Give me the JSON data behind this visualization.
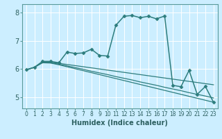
{
  "title": "",
  "xlabel": "Humidex (Indice chaleur)",
  "ylabel": "",
  "bg_color": "#cceeff",
  "line_color": "#2d7d7d",
  "grid_color": "#ffffff",
  "xlim": [
    -0.5,
    23.5
  ],
  "ylim": [
    4.6,
    8.3
  ],
  "xticks": [
    0,
    1,
    2,
    3,
    4,
    5,
    6,
    7,
    8,
    9,
    10,
    11,
    12,
    13,
    14,
    15,
    16,
    17,
    18,
    19,
    20,
    21,
    22,
    23
  ],
  "yticks": [
    5,
    6,
    7,
    8
  ],
  "lines": [
    {
      "x": [
        0,
        1,
        2,
        3,
        4,
        5,
        6,
        7,
        8,
        9,
        10,
        11,
        12,
        13,
        14,
        15,
        16,
        17,
        18,
        19,
        20,
        21,
        22,
        23
      ],
      "y": [
        5.97,
        6.06,
        6.27,
        6.27,
        6.22,
        6.6,
        6.55,
        6.57,
        6.7,
        6.48,
        6.46,
        7.55,
        7.87,
        7.9,
        7.82,
        7.87,
        7.78,
        7.88,
        5.42,
        5.37,
        5.95,
        5.1,
        5.38,
        4.82
      ],
      "marker": "D",
      "lw": 1.1
    },
    {
      "x": [
        0,
        1,
        2,
        3,
        4,
        5,
        6,
        7,
        8,
        9,
        10,
        11,
        12,
        13,
        14,
        15,
        16,
        17,
        18,
        19,
        20,
        21,
        22,
        23
      ],
      "y": [
        5.97,
        6.06,
        6.24,
        6.24,
        6.2,
        6.16,
        6.12,
        6.08,
        6.04,
        6.0,
        5.96,
        5.92,
        5.88,
        5.84,
        5.8,
        5.76,
        5.72,
        5.68,
        5.64,
        5.6,
        5.56,
        5.52,
        5.48,
        5.44
      ],
      "marker": null,
      "lw": 0.9
    },
    {
      "x": [
        0,
        1,
        2,
        3,
        4,
        5,
        6,
        7,
        8,
        9,
        10,
        11,
        12,
        13,
        14,
        15,
        16,
        17,
        18,
        19,
        20,
        21,
        22,
        23
      ],
      "y": [
        5.97,
        6.06,
        6.23,
        6.22,
        6.17,
        6.11,
        6.05,
        5.99,
        5.92,
        5.86,
        5.8,
        5.73,
        5.67,
        5.61,
        5.54,
        5.48,
        5.42,
        5.35,
        5.29,
        5.23,
        5.16,
        5.1,
        5.04,
        4.97
      ],
      "marker": null,
      "lw": 0.9
    },
    {
      "x": [
        0,
        1,
        2,
        3,
        4,
        5,
        6,
        7,
        8,
        9,
        10,
        11,
        12,
        13,
        14,
        15,
        16,
        17,
        18,
        19,
        20,
        21,
        22,
        23
      ],
      "y": [
        5.97,
        6.06,
        6.22,
        6.21,
        6.15,
        6.08,
        6.01,
        5.94,
        5.87,
        5.8,
        5.73,
        5.66,
        5.59,
        5.52,
        5.45,
        5.38,
        5.31,
        5.24,
        5.17,
        5.1,
        5.03,
        4.96,
        4.89,
        4.82
      ],
      "marker": null,
      "lw": 0.9
    }
  ],
  "xlabel_fontsize": 7,
  "tick_fontsize": 5.5,
  "ytick_fontsize": 7
}
